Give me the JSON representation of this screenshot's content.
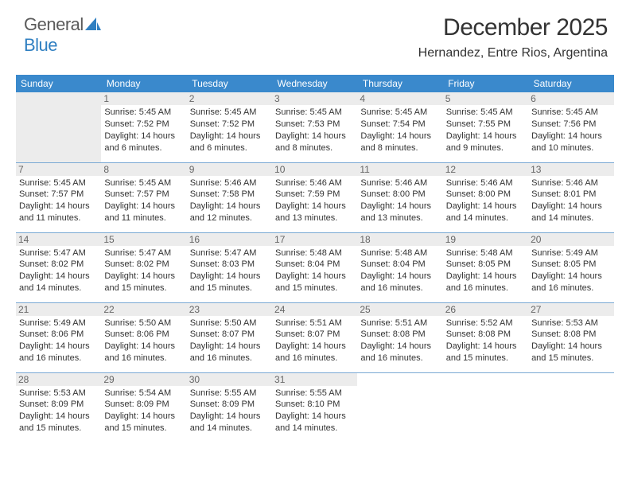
{
  "brand": {
    "part1": "General",
    "part2": "Blue"
  },
  "title": "December 2025",
  "location": "Hernandez, Entre Rios, Argentina",
  "colors": {
    "header_bg": "#3a89cc",
    "border": "#7aa9d4",
    "daynum_bg": "#ececec",
    "brand_blue": "#2f7fc1"
  },
  "weekdays": [
    "Sunday",
    "Monday",
    "Tuesday",
    "Wednesday",
    "Thursday",
    "Friday",
    "Saturday"
  ],
  "weeks": [
    [
      null,
      {
        "n": "1",
        "sr": "5:45 AM",
        "ss": "7:52 PM",
        "dl": "14 hours and 6 minutes."
      },
      {
        "n": "2",
        "sr": "5:45 AM",
        "ss": "7:52 PM",
        "dl": "14 hours and 6 minutes."
      },
      {
        "n": "3",
        "sr": "5:45 AM",
        "ss": "7:53 PM",
        "dl": "14 hours and 8 minutes."
      },
      {
        "n": "4",
        "sr": "5:45 AM",
        "ss": "7:54 PM",
        "dl": "14 hours and 8 minutes."
      },
      {
        "n": "5",
        "sr": "5:45 AM",
        "ss": "7:55 PM",
        "dl": "14 hours and 9 minutes."
      },
      {
        "n": "6",
        "sr": "5:45 AM",
        "ss": "7:56 PM",
        "dl": "14 hours and 10 minutes."
      }
    ],
    [
      {
        "n": "7",
        "sr": "5:45 AM",
        "ss": "7:57 PM",
        "dl": "14 hours and 11 minutes."
      },
      {
        "n": "8",
        "sr": "5:45 AM",
        "ss": "7:57 PM",
        "dl": "14 hours and 11 minutes."
      },
      {
        "n": "9",
        "sr": "5:46 AM",
        "ss": "7:58 PM",
        "dl": "14 hours and 12 minutes."
      },
      {
        "n": "10",
        "sr": "5:46 AM",
        "ss": "7:59 PM",
        "dl": "14 hours and 13 minutes."
      },
      {
        "n": "11",
        "sr": "5:46 AM",
        "ss": "8:00 PM",
        "dl": "14 hours and 13 minutes."
      },
      {
        "n": "12",
        "sr": "5:46 AM",
        "ss": "8:00 PM",
        "dl": "14 hours and 14 minutes."
      },
      {
        "n": "13",
        "sr": "5:46 AM",
        "ss": "8:01 PM",
        "dl": "14 hours and 14 minutes."
      }
    ],
    [
      {
        "n": "14",
        "sr": "5:47 AM",
        "ss": "8:02 PM",
        "dl": "14 hours and 14 minutes."
      },
      {
        "n": "15",
        "sr": "5:47 AM",
        "ss": "8:02 PM",
        "dl": "14 hours and 15 minutes."
      },
      {
        "n": "16",
        "sr": "5:47 AM",
        "ss": "8:03 PM",
        "dl": "14 hours and 15 minutes."
      },
      {
        "n": "17",
        "sr": "5:48 AM",
        "ss": "8:04 PM",
        "dl": "14 hours and 15 minutes."
      },
      {
        "n": "18",
        "sr": "5:48 AM",
        "ss": "8:04 PM",
        "dl": "14 hours and 16 minutes."
      },
      {
        "n": "19",
        "sr": "5:48 AM",
        "ss": "8:05 PM",
        "dl": "14 hours and 16 minutes."
      },
      {
        "n": "20",
        "sr": "5:49 AM",
        "ss": "8:05 PM",
        "dl": "14 hours and 16 minutes."
      }
    ],
    [
      {
        "n": "21",
        "sr": "5:49 AM",
        "ss": "8:06 PM",
        "dl": "14 hours and 16 minutes."
      },
      {
        "n": "22",
        "sr": "5:50 AM",
        "ss": "8:06 PM",
        "dl": "14 hours and 16 minutes."
      },
      {
        "n": "23",
        "sr": "5:50 AM",
        "ss": "8:07 PM",
        "dl": "14 hours and 16 minutes."
      },
      {
        "n": "24",
        "sr": "5:51 AM",
        "ss": "8:07 PM",
        "dl": "14 hours and 16 minutes."
      },
      {
        "n": "25",
        "sr": "5:51 AM",
        "ss": "8:08 PM",
        "dl": "14 hours and 16 minutes."
      },
      {
        "n": "26",
        "sr": "5:52 AM",
        "ss": "8:08 PM",
        "dl": "14 hours and 15 minutes."
      },
      {
        "n": "27",
        "sr": "5:53 AM",
        "ss": "8:08 PM",
        "dl": "14 hours and 15 minutes."
      }
    ],
    [
      {
        "n": "28",
        "sr": "5:53 AM",
        "ss": "8:09 PM",
        "dl": "14 hours and 15 minutes."
      },
      {
        "n": "29",
        "sr": "5:54 AM",
        "ss": "8:09 PM",
        "dl": "14 hours and 15 minutes."
      },
      {
        "n": "30",
        "sr": "5:55 AM",
        "ss": "8:09 PM",
        "dl": "14 hours and 14 minutes."
      },
      {
        "n": "31",
        "sr": "5:55 AM",
        "ss": "8:10 PM",
        "dl": "14 hours and 14 minutes."
      },
      null,
      null,
      null
    ]
  ],
  "labels": {
    "sunrise": "Sunrise:",
    "sunset": "Sunset:",
    "daylight": "Daylight:"
  }
}
